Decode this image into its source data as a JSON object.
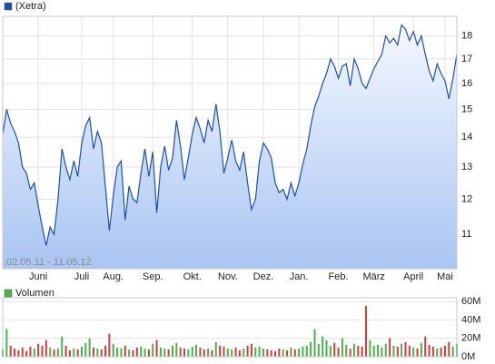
{
  "chart_data": [
    {
      "type": "area",
      "log_scale": true,
      "grid": true,
      "legend": "top-left",
      "subtitle": "02.05.11 - 11.05.12",
      "fill_top": "#f4f8ff",
      "fill_bottom": "#a9c5f2",
      "categories": [
        null,
        null,
        null,
        null,
        null,
        null,
        null,
        null,
        null,
        "Juni",
        null,
        null,
        null,
        null,
        null,
        null,
        null,
        null,
        null,
        null,
        "Juli",
        null,
        null,
        null,
        null,
        null,
        null,
        null,
        "Aug.",
        null,
        null,
        null,
        null,
        null,
        null,
        null,
        null,
        null,
        "Sep.",
        null,
        null,
        null,
        null,
        null,
        null,
        null,
        null,
        null,
        "Okt.",
        null,
        null,
        null,
        null,
        null,
        null,
        null,
        null,
        "Nov.",
        null,
        null,
        null,
        null,
        null,
        null,
        null,
        null,
        "Dez.",
        null,
        null,
        null,
        null,
        null,
        null,
        null,
        null,
        "Jan.",
        null,
        null,
        null,
        null,
        null,
        null,
        null,
        null,
        null,
        "Feb.",
        null,
        null,
        null,
        null,
        null,
        null,
        null,
        null,
        "März",
        null,
        null,
        null,
        null,
        null,
        null,
        null,
        null,
        null,
        "April",
        null,
        null,
        null,
        null,
        null,
        null,
        null,
        "Mai",
        null,
        null,
        null
      ],
      "series": [
        {
          "name": "(Xetra)",
          "color": "#1f4fa8",
          "values": [
            14.1,
            15.0,
            14.5,
            14.2,
            13.8,
            13.0,
            12.8,
            12.3,
            12.5,
            11.8,
            11.2,
            10.7,
            11.2,
            11.0,
            12.0,
            13.6,
            13.0,
            12.6,
            13.2,
            12.7,
            13.8,
            14.4,
            14.7,
            13.6,
            14.2,
            13.8,
            12.4,
            11.1,
            12.1,
            13.0,
            13.2,
            11.4,
            12.4,
            12.0,
            11.9,
            12.8,
            13.6,
            12.7,
            13.5,
            11.6,
            13.0,
            13.7,
            12.9,
            13.3,
            14.6,
            13.7,
            12.6,
            13.3,
            14.1,
            14.7,
            14.3,
            13.8,
            14.6,
            14.2,
            15.2,
            14.2,
            12.8,
            13.3,
            13.9,
            13.2,
            12.9,
            13.5,
            12.5,
            11.7,
            12.0,
            13.2,
            13.8,
            13.6,
            13.3,
            12.5,
            12.2,
            12.3,
            12.0,
            12.5,
            12.1,
            12.5,
            13.1,
            13.6,
            14.4,
            15.1,
            15.5,
            16.0,
            16.4,
            17.0,
            16.7,
            16.2,
            16.7,
            16.8,
            15.9,
            17.0,
            16.6,
            16.0,
            15.8,
            16.2,
            16.6,
            16.9,
            17.2,
            18.0,
            17.7,
            17.9,
            17.6,
            18.5,
            18.3,
            17.8,
            18.2,
            17.6,
            18.0,
            17.2,
            16.5,
            16.1,
            16.8,
            16.4,
            16.1,
            15.4,
            16.2,
            17.2
          ]
        }
      ],
      "ylim": [
        10.1,
        18.9
      ],
      "yticks": [
        11,
        12,
        13,
        14,
        15,
        16,
        17,
        18
      ]
    },
    {
      "type": "bar",
      "legend": "top-left",
      "series": [
        {
          "name": "Volumen",
          "color": "#4cb04c",
          "down_color": "#d23c3c",
          "values": [
            8,
            30,
            12,
            9,
            7,
            10,
            6,
            11,
            9,
            14,
            12,
            18,
            10,
            8,
            9,
            22,
            12,
            7,
            9,
            8,
            11,
            15,
            20,
            10,
            9,
            8,
            12,
            25,
            14,
            10,
            9,
            12,
            8,
            7,
            10,
            11,
            9,
            8,
            14,
            18,
            10,
            9,
            8,
            12,
            15,
            10,
            9,
            8,
            11,
            13,
            10,
            8,
            9,
            7,
            16,
            12,
            11,
            9,
            8,
            10,
            7,
            9,
            12,
            14,
            10,
            11,
            9,
            8,
            7,
            6,
            9,
            8,
            7,
            10,
            8,
            9,
            11,
            12,
            16,
            30,
            14,
            22,
            18,
            12,
            15,
            10,
            20,
            13,
            9,
            14,
            12,
            11,
            55,
            18,
            12,
            13,
            10,
            14,
            20,
            12,
            11,
            14,
            16,
            12,
            10,
            9,
            15,
            22,
            13,
            11,
            9,
            10,
            12,
            16,
            11,
            14
          ]
        }
      ],
      "ylim": [
        0,
        64
      ],
      "yticks": [
        {
          "value": 0,
          "label": "0M"
        },
        {
          "value": 20,
          "label": "20M"
        },
        {
          "value": 40,
          "label": "40M"
        },
        {
          "value": 60,
          "label": "60M"
        }
      ]
    }
  ]
}
